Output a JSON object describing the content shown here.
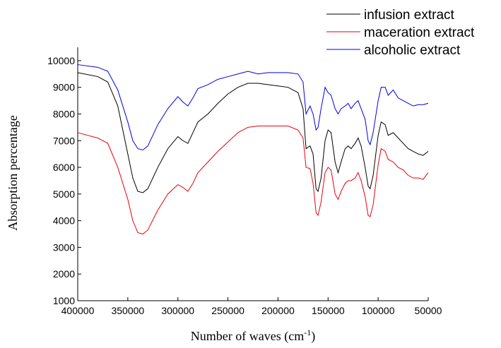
{
  "chart_data": {
    "type": "line",
    "x_label": [
      "Number of waves (cm",
      "-1",
      ")"
    ],
    "y_label": "Absorption percentage",
    "xlim": [
      400000,
      50000
    ],
    "ylim": [
      1000,
      10500
    ],
    "xticks": [
      400000,
      350000,
      300000,
      250000,
      200000,
      150000,
      100000,
      50000
    ],
    "yticks": [
      1000,
      2000,
      3000,
      4000,
      5000,
      6000,
      7000,
      8000,
      9000,
      10000
    ],
    "legend": "top-right",
    "x": [
      400000,
      380000,
      370000,
      360000,
      350000,
      345000,
      340000,
      335000,
      330000,
      320000,
      310000,
      300000,
      295000,
      290000,
      285000,
      280000,
      270000,
      260000,
      250000,
      240000,
      230000,
      220000,
      210000,
      200000,
      190000,
      180000,
      175000,
      172000,
      168000,
      165000,
      162000,
      160000,
      157000,
      153000,
      150000,
      147000,
      143000,
      140000,
      137000,
      133000,
      130000,
      127000,
      123000,
      120000,
      117000,
      113000,
      110000,
      108000,
      105000,
      100000,
      97000,
      93000,
      90000,
      85000,
      80000,
      75000,
      70000,
      65000,
      60000,
      55000,
      50000
    ],
    "series": [
      {
        "name": "infusion extract",
        "color": "#000000",
        "values": [
          9550,
          9400,
          9200,
          8300,
          6500,
          5600,
          5100,
          5050,
          5200,
          6000,
          6700,
          7150,
          7000,
          6900,
          7300,
          7700,
          8000,
          8400,
          8750,
          9000,
          9150,
          9150,
          9100,
          9050,
          9000,
          8800,
          8200,
          6700,
          6800,
          6500,
          5200,
          5100,
          5600,
          7000,
          7400,
          7300,
          6200,
          5800,
          6200,
          6700,
          6800,
          6700,
          6900,
          7100,
          6800,
          6000,
          5300,
          5200,
          5700,
          7200,
          7700,
          7600,
          7200,
          7300,
          7100,
          6900,
          6700,
          6600,
          6500,
          6450,
          6600
        ]
      },
      {
        "name": "maceration extract",
        "color": "#e8000b",
        "values": [
          7300,
          7100,
          6900,
          6000,
          4800,
          4000,
          3550,
          3500,
          3650,
          4400,
          5000,
          5350,
          5250,
          5100,
          5400,
          5800,
          6200,
          6600,
          6950,
          7300,
          7500,
          7550,
          7550,
          7550,
          7550,
          7400,
          7100,
          6000,
          5950,
          5400,
          4300,
          4200,
          4700,
          5800,
          6000,
          5900,
          5000,
          4800,
          5100,
          5400,
          5500,
          5500,
          5600,
          5800,
          5500,
          4900,
          4200,
          4150,
          4600,
          6100,
          6700,
          6600,
          6300,
          6200,
          6000,
          5900,
          5700,
          5600,
          5600,
          5550,
          5800
        ]
      },
      {
        "name": "alcoholic extract",
        "color": "#0000e0",
        "values": [
          9850,
          9750,
          9600,
          8900,
          7700,
          7000,
          6700,
          6650,
          6800,
          7600,
          8200,
          8650,
          8450,
          8300,
          8600,
          8950,
          9100,
          9300,
          9400,
          9500,
          9600,
          9500,
          9550,
          9550,
          9550,
          9500,
          9200,
          8000,
          8300,
          8000,
          7400,
          7500,
          8200,
          9000,
          8800,
          8700,
          8200,
          8000,
          8200,
          8300,
          8400,
          8200,
          8400,
          8500,
          8200,
          7800,
          7000,
          6850,
          7300,
          8500,
          9000,
          9000,
          8700,
          8900,
          8600,
          8500,
          8400,
          8300,
          8350,
          8350,
          8400
        ]
      }
    ]
  }
}
